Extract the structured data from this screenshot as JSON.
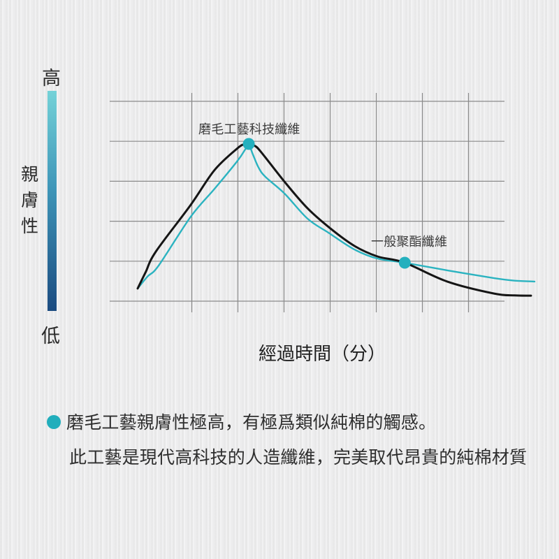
{
  "y_axis": {
    "high_label": "高",
    "low_label": "低",
    "title_chars": [
      "親",
      "膚",
      "性"
    ],
    "gradient_top": "#74d2d8",
    "gradient_mid": "#3e95b8",
    "gradient_bottom": "#1b4b80"
  },
  "chart_data": {
    "type": "line",
    "title": "",
    "xlabel": "經過時間（分）",
    "ylabel": "親膚性",
    "x_range_minutes": [
      0,
      10
    ],
    "y_range_relative": [
      0,
      100
    ],
    "grid": {
      "on": true,
      "h_lines": 6,
      "v_lines": 7
    },
    "legend_position": "none",
    "series": [
      {
        "name": "磨毛工藝科技纖維",
        "color": "#2bb3c0",
        "stroke_width": 2.4,
        "points": [
          [
            0,
            11.3
          ],
          [
            0.25,
            17.0
          ],
          [
            0.53,
            22.2
          ],
          [
            1.34,
            45.4
          ],
          [
            1.94,
            58.6
          ],
          [
            2.52,
            71.9
          ],
          [
            2.72,
            77.5
          ],
          [
            2.8,
            79.6
          ],
          [
            2.9,
            75.0
          ],
          [
            3.05,
            68.5
          ],
          [
            3.22,
            64.2
          ],
          [
            3.7,
            56.3
          ],
          [
            4.28,
            44.4
          ],
          [
            4.81,
            37.7
          ],
          [
            5.46,
            29.8
          ],
          [
            6.04,
            25.5
          ],
          [
            6.73,
            23.5
          ],
          [
            7.8,
            19.9
          ],
          [
            8.98,
            16.2
          ],
          [
            9.5,
            15.0
          ],
          [
            10,
            14.6
          ]
        ]
      },
      {
        "name": "一般聚酯纖維",
        "color": "#151515",
        "stroke_width": 3,
        "points": [
          [
            0,
            11.3
          ],
          [
            0.2,
            19.0
          ],
          [
            0.46,
            28.8
          ],
          [
            1.34,
            51.0
          ],
          [
            1.94,
            67.5
          ],
          [
            2.52,
            77.8
          ],
          [
            2.68,
            79.6
          ],
          [
            2.8,
            80.1
          ],
          [
            2.95,
            78.9
          ],
          [
            3.1,
            76.2
          ],
          [
            3.7,
            61.9
          ],
          [
            4.28,
            49.3
          ],
          [
            4.86,
            39.7
          ],
          [
            5.46,
            31.5
          ],
          [
            6.04,
            26.5
          ],
          [
            6.73,
            23.5
          ],
          [
            7.8,
            14.6
          ],
          [
            8.98,
            8.9
          ],
          [
            9.5,
            8.0
          ],
          [
            9.91,
            7.9
          ]
        ]
      }
    ],
    "annotations": [
      {
        "label": "磨毛工藝科技纖維",
        "t": 2.8,
        "v": 79.8,
        "marker_color": "#24b0be",
        "marker_radius": 8.5
      },
      {
        "label": "一般聚酯纖維",
        "t": 6.73,
        "v": 23.5,
        "marker_color": "#24b0be",
        "marker_radius": 8.5
      }
    ]
  },
  "notes": {
    "bullet_color": "#21aebc",
    "line1": "磨毛工藝親膚性極高，有極爲類似純棉的觸感。",
    "line2": "此工藝是現代高科技的人造纖維，完美取代昂貴的純棉材質"
  }
}
